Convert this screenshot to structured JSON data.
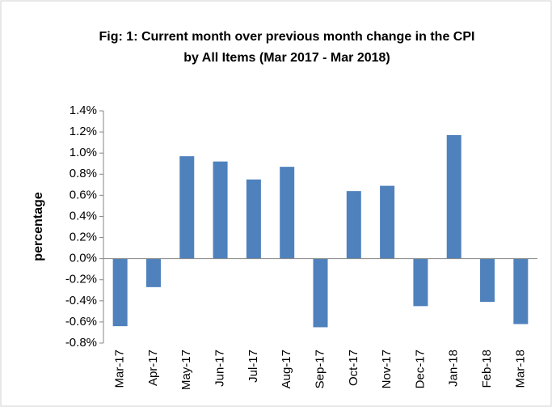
{
  "chart_data": {
    "type": "bar",
    "title": [
      "Fig: 1: Current month over previous month change in the CPI",
      "by All Items (Mar 2017 - Mar 2018)"
    ],
    "y_label": "percentage",
    "categories": [
      "Mar-17",
      "Apr-17",
      "May-17",
      "Jun-17",
      "Jul-17",
      "Aug-17",
      "Sep-17",
      "Oct-17",
      "Nov-17",
      "Dec-17",
      "Jan-18",
      "Feb-18",
      "Mar-18"
    ],
    "values": [
      -0.64,
      -0.27,
      0.97,
      0.92,
      0.75,
      0.87,
      -0.65,
      0.64,
      0.69,
      -0.45,
      1.17,
      -0.41,
      -0.62
    ],
    "color": "#4f81bd",
    "ylim": [
      -0.8,
      1.4
    ],
    "yticks": [
      {
        "value": -0.8,
        "label": "-0.8%"
      },
      {
        "value": -0.6,
        "label": "-0.6%"
      },
      {
        "value": -0.4,
        "label": "-0.4%"
      },
      {
        "value": -0.2,
        "label": "-0.2%"
      },
      {
        "value": 0,
        "label": "0.0%"
      },
      {
        "value": 0.2,
        "label": "0.2%"
      },
      {
        "value": 0.4,
        "label": "0.4%"
      },
      {
        "value": 0.6,
        "label": "0.6%"
      },
      {
        "value": 0.8,
        "label": "0.8%"
      },
      {
        "value": 1.0,
        "label": "1.0%"
      },
      {
        "value": 1.2,
        "label": "1.2%"
      },
      {
        "value": 1.4,
        "label": "1.4%"
      }
    ],
    "grid": false
  }
}
